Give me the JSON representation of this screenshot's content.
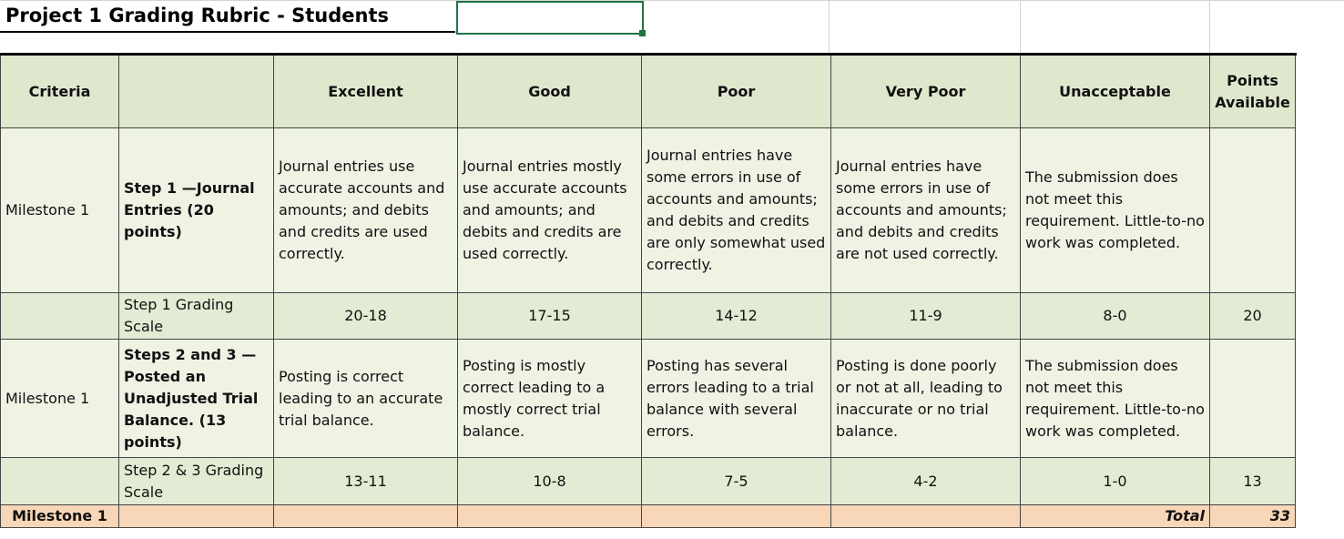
{
  "header": {
    "title": "Project 1 Grading Rubric - Students"
  },
  "table": {
    "rows": [
      [
        "Criteria",
        null,
        "Excellent",
        "Good",
        "Poor",
        "Very Poor",
        "Unacceptable",
        "Points Available"
      ],
      [
        "Milestone 1",
        "Step 1 —Journal Entries (20 points)",
        "Journal entries use accurate accounts and amounts; and debits and credits are used correctly.",
        "Journal entries mostly use accurate accounts and amounts; and debits and credits are used correctly.",
        "Journal entries have some errors in use of accounts and amounts; and debits and credits are only somewhat used correctly.",
        "Journal entries have some errors in use of accounts and amounts; and debits and credits are not used correctly.",
        "The submission does not meet this requirement. Little-to-no work was completed.",
        null
      ],
      [
        null,
        "Step 1 Grading Scale",
        "20-18",
        "17-15",
        "14-12",
        "11-9",
        "8-0",
        20
      ],
      [
        "Milestone 1",
        "Steps 2 and 3 —Posted an Unadjusted Trial Balance. (13 points)",
        "Posting is correct leading to an accurate trial balance.",
        "Posting is mostly correct leading to a mostly correct trial balance.",
        "Posting has several errors leading to a trial balance with several errors.",
        "Posting is done poorly or not at all, leading to inaccurate or no trial balance.",
        "The submission does not meet this requirement. Little-to-no work was completed.",
        null
      ],
      [
        null,
        "Step 2 & 3 Grading Scale",
        "13-11",
        "10-8",
        "7-5",
        "4-2",
        "1-0",
        13
      ],
      [
        "Milestone 1",
        null,
        null,
        null,
        null,
        null,
        "Total",
        33
      ]
    ]
  }
}
